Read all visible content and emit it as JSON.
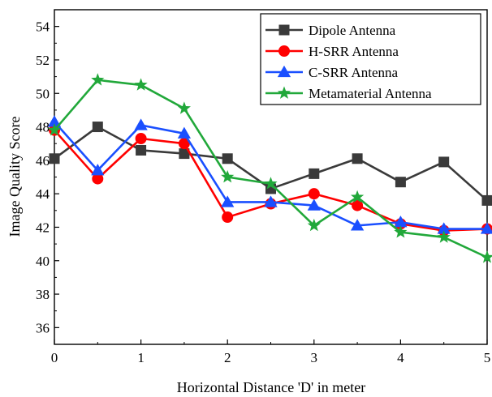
{
  "chart_data": {
    "type": "line",
    "title": "",
    "xlabel": "Horizontal Distance 'D' in meter",
    "ylabel": "Image Quality Score",
    "xlim": [
      0,
      5
    ],
    "ylim": [
      35,
      55
    ],
    "x_ticks": [
      0,
      1,
      2,
      3,
      4,
      5
    ],
    "y_ticks": [
      36,
      38,
      40,
      42,
      44,
      46,
      48,
      50,
      52,
      54
    ],
    "grid": false,
    "legend_position": "top-right",
    "x": [
      0,
      0.5,
      1,
      1.5,
      2,
      2.5,
      3,
      3.5,
      4,
      4.5,
      5
    ],
    "series": [
      {
        "name": "Dipole Antenna",
        "color": "#3a3a3a",
        "marker": "square",
        "values": [
          46.1,
          48.0,
          46.6,
          46.4,
          46.1,
          44.3,
          45.2,
          46.1,
          44.7,
          45.9,
          43.6
        ]
      },
      {
        "name": "H-SRR Antenna",
        "color": "#ff0000",
        "marker": "circle",
        "values": [
          47.8,
          44.9,
          47.3,
          47.0,
          42.6,
          43.4,
          44.0,
          43.3,
          42.2,
          41.8,
          41.9
        ]
      },
      {
        "name": "C-SRR Antenna",
        "color": "#1a4fff",
        "marker": "triangle",
        "values": [
          48.3,
          45.4,
          48.1,
          47.6,
          43.5,
          43.5,
          43.3,
          42.1,
          42.3,
          41.9,
          41.9
        ]
      },
      {
        "name": "Metamaterial Antenna",
        "color": "#21a83a",
        "marker": "star",
        "values": [
          47.8,
          50.8,
          50.5,
          49.1,
          45.0,
          44.6,
          42.1,
          43.8,
          41.7,
          41.4,
          40.2
        ]
      }
    ]
  }
}
